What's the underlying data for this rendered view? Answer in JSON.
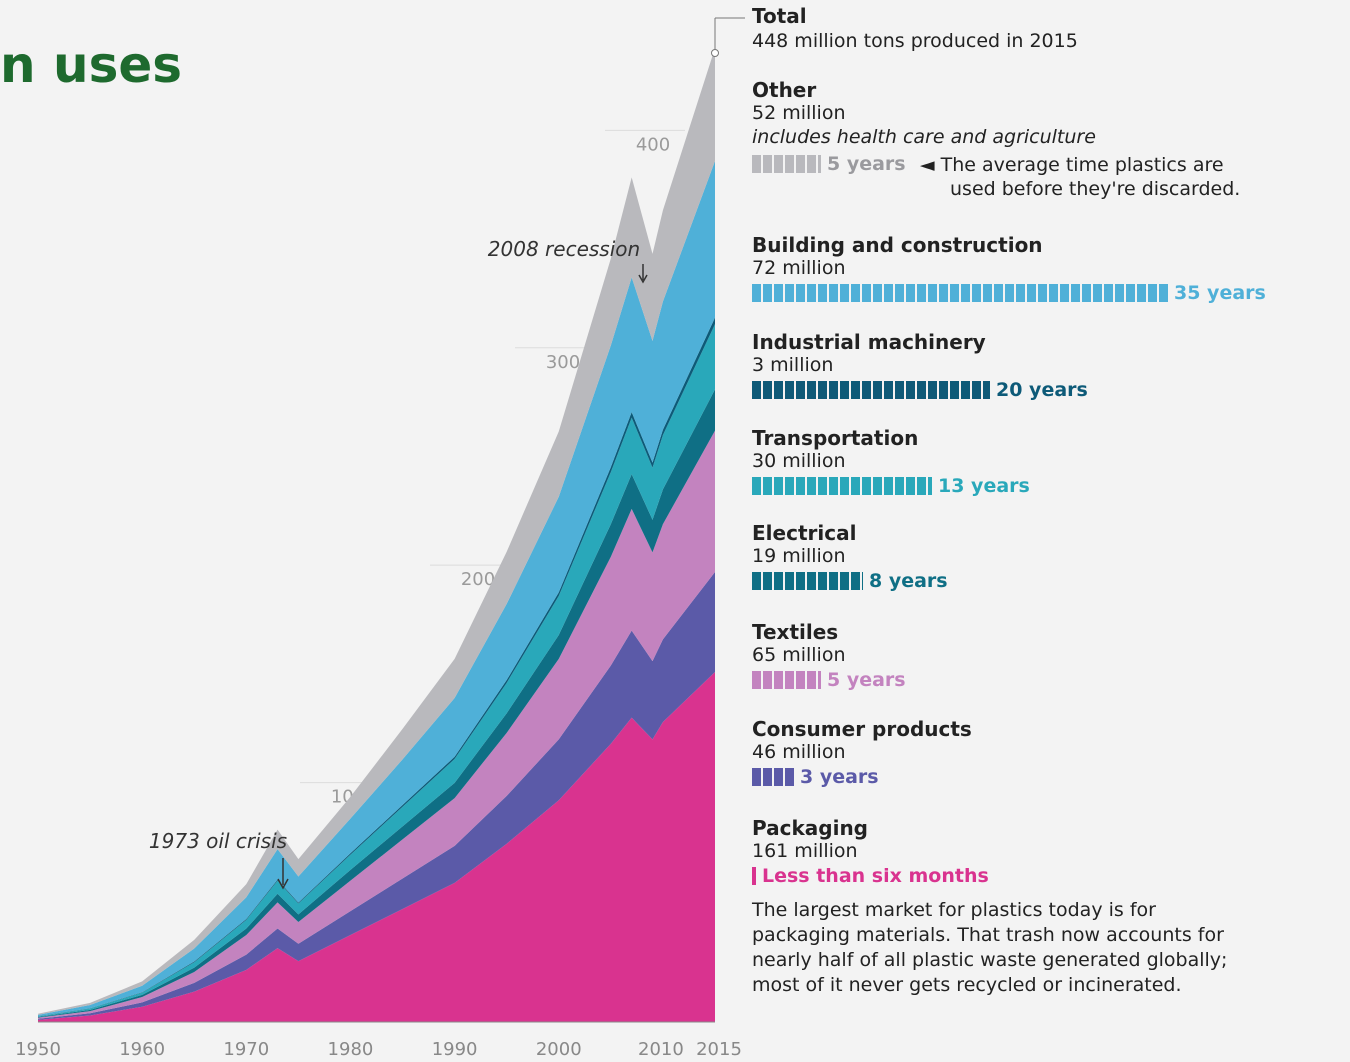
{
  "heading": "n uses",
  "chart_data": {
    "type": "area",
    "stacked": true,
    "x": [
      1950,
      1955,
      1960,
      1965,
      1970,
      1973,
      1975,
      1980,
      1985,
      1990,
      1995,
      2000,
      2005,
      2007,
      2009,
      2010,
      2015
    ],
    "x_ticks": [
      "1950",
      "1960",
      "1970",
      "1980",
      "1990",
      "2000",
      "2010",
      "2015"
    ],
    "y_ticks": [
      "100",
      "200",
      "300",
      "400"
    ],
    "ylim": [
      0,
      460
    ],
    "series": [
      {
        "name": "Packaging",
        "color": "#d9338f",
        "values": [
          1,
          3,
          7,
          14,
          24,
          34,
          28,
          40,
          52,
          64,
          82,
          102,
          128,
          140,
          130,
          138,
          161
        ]
      },
      {
        "name": "Consumer products",
        "color": "#5b5aa8",
        "values": [
          0.5,
          1,
          2,
          4,
          7,
          9,
          8,
          11,
          14,
          17,
          22,
          28,
          36,
          40,
          36,
          38,
          46
        ]
      },
      {
        "name": "Textiles",
        "color": "#c383bf",
        "values": [
          0.5,
          1,
          2.5,
          5,
          9,
          12,
          10,
          14,
          18,
          22,
          29,
          37,
          50,
          56,
          50,
          53,
          65
        ]
      },
      {
        "name": "Electrical",
        "color": "#0f6f85",
        "values": [
          0.3,
          0.6,
          1,
          2,
          3,
          4,
          3.5,
          5,
          6,
          7,
          9,
          11,
          15,
          16,
          15,
          16,
          19
        ]
      },
      {
        "name": "Transportation",
        "color": "#29a8ba",
        "values": [
          0.3,
          0.6,
          1,
          2.5,
          4,
          6,
          5,
          7,
          9,
          11,
          14,
          18,
          24,
          26,
          24,
          25,
          30
        ]
      },
      {
        "name": "Industrial machinery",
        "color": "#0d5a78",
        "values": [
          0.1,
          0.1,
          0.2,
          0.3,
          0.4,
          0.5,
          0.4,
          0.6,
          0.8,
          1,
          1.3,
          1.6,
          2.2,
          2.5,
          2.3,
          2.4,
          3
        ]
      },
      {
        "name": "Building and construction",
        "color": "#4fb0d8",
        "values": [
          0.6,
          1.5,
          3,
          6,
          10,
          14,
          12,
          16,
          21,
          27,
          35,
          44,
          56,
          62,
          56,
          59,
          72
        ]
      },
      {
        "name": "Other",
        "color": "#b9b9bd",
        "values": [
          0.5,
          1,
          2,
          4,
          6,
          9,
          8,
          10,
          14,
          18,
          24,
          30,
          40,
          46,
          40,
          42,
          52
        ]
      }
    ],
    "annotations": [
      "1973 oil crisis",
      "2008 recession"
    ]
  },
  "total": {
    "name": "Total",
    "amount": "448 million tons produced in 2015"
  },
  "categories": [
    {
      "name": "Other",
      "amount": "52 million",
      "note": "includes health care and agriculture",
      "life": "5 years",
      "years": 5,
      "color": "#b9b9bd",
      "label_color": "#9a9a9e"
    },
    {
      "name": "Building and construction",
      "amount": "72 million",
      "life": "35 years",
      "years": 35,
      "color": "#4fb0d8",
      "label_color": "#4fb0d8"
    },
    {
      "name": "Industrial machinery",
      "amount": "3 million",
      "life": "20 years",
      "years": 20,
      "color": "#0d5a78",
      "label_color": "#0d5a78"
    },
    {
      "name": "Transportation",
      "amount": "30 million",
      "life": "13 years",
      "years": 13,
      "color": "#29a8ba",
      "label_color": "#29a8ba"
    },
    {
      "name": "Electrical",
      "amount": "19 million",
      "life": "8 years",
      "years": 8,
      "color": "#0f6f85",
      "label_color": "#0f6f85"
    },
    {
      "name": "Textiles",
      "amount": "65 million",
      "life": "5 years",
      "years": 5,
      "color": "#c383bf",
      "label_color": "#c383bf"
    },
    {
      "name": "Consumer products",
      "amount": "46 million",
      "life": "3 years",
      "years": 3,
      "color": "#5b5aa8",
      "label_color": "#5b5aa8"
    },
    {
      "name": "Packaging",
      "amount": "161 million",
      "life": "Less than six months",
      "years": 0.5,
      "color": "#d9338f",
      "label_color": "#d9338f"
    }
  ],
  "avg_note": [
    "The average time plastics are",
    "used before they're discarded."
  ],
  "description": "The largest market for plastics today is for packaging materials. That trash now accounts for nearly half of all plastic waste generated globally; most of it never gets recycled or incinerated."
}
